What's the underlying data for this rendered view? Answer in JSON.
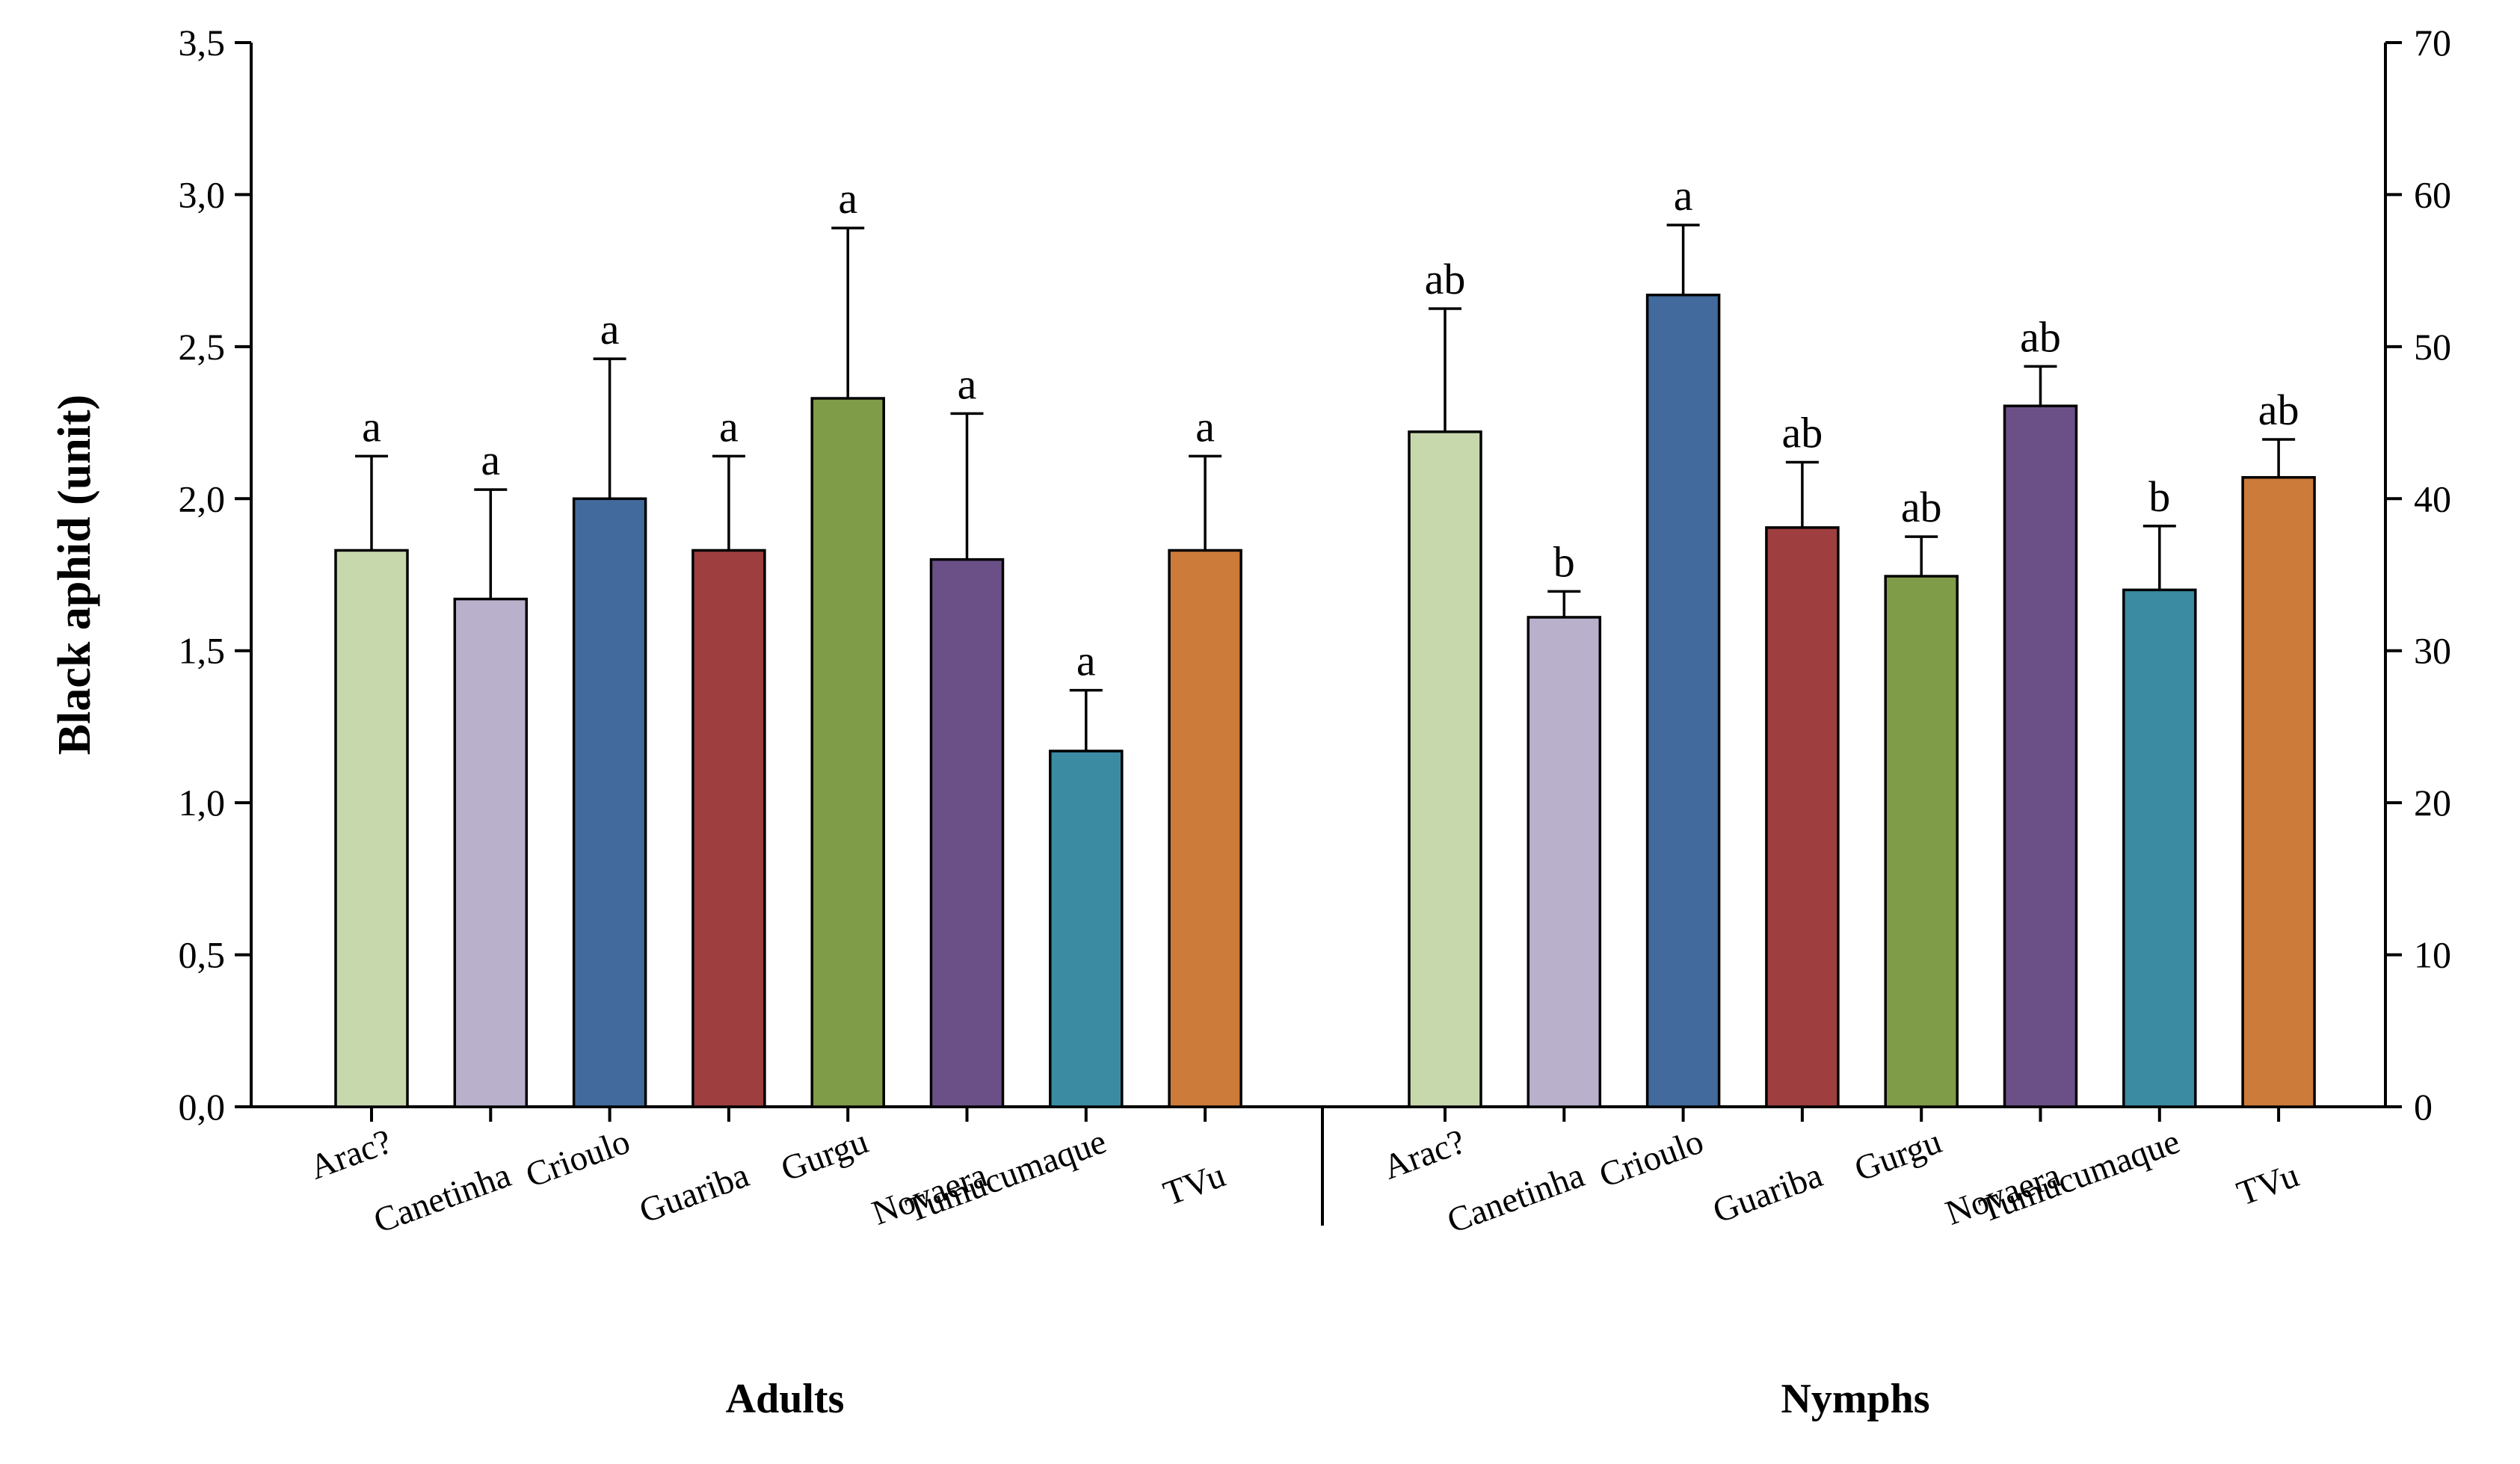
{
  "chart_data": {
    "type": "bar",
    "ylabel": "Black aphid (unit)",
    "left_axis": {
      "ylim": [
        0,
        3.5
      ],
      "ticks": [
        "0,0",
        "0,5",
        "1,0",
        "1,5",
        "2,0",
        "2,5",
        "3,0",
        "3,5"
      ]
    },
    "right_axis": {
      "ylim": [
        0,
        70
      ],
      "ticks": [
        "0",
        "10",
        "20",
        "30",
        "40",
        "50",
        "60",
        "70"
      ]
    },
    "colors": [
      "#c8d8ad",
      "#b9b0cc",
      "#426a9c",
      "#9e3e3e",
      "#7f9c48",
      "#6b5087",
      "#3b8ba3",
      "#cc7b3a"
    ],
    "groups": [
      {
        "name": "Adults",
        "axis": "left",
        "categories": [
          "Arac?",
          "Canetinha",
          "Crioulo",
          "Guariba",
          "Gurgu",
          "Novaera",
          "Tumucumaque",
          "TVu"
        ],
        "values": [
          1.83,
          1.67,
          2.0,
          1.83,
          2.33,
          1.8,
          1.17,
          1.83
        ],
        "errors": [
          0.31,
          0.36,
          0.46,
          0.31,
          0.56,
          0.48,
          0.2,
          0.31
        ],
        "letters": [
          "a",
          "a",
          "a",
          "a",
          "a",
          "a",
          "a",
          "a"
        ]
      },
      {
        "name": "Nymphs",
        "axis": "right",
        "categories": [
          "Arac?",
          "Canetinha",
          "Crioulo",
          "Guariba",
          "Gurgu",
          "Novaera",
          "Tumucumaque",
          "TVu"
        ],
        "values": [
          44.4,
          32.2,
          53.4,
          38.1,
          34.9,
          46.1,
          34.0,
          41.4
        ],
        "errors": [
          8.1,
          1.7,
          4.6,
          4.3,
          2.6,
          2.6,
          4.2,
          2.5
        ],
        "letters": [
          "ab",
          "b",
          "a",
          "ab",
          "ab",
          "ab",
          "b",
          "ab"
        ]
      }
    ]
  }
}
